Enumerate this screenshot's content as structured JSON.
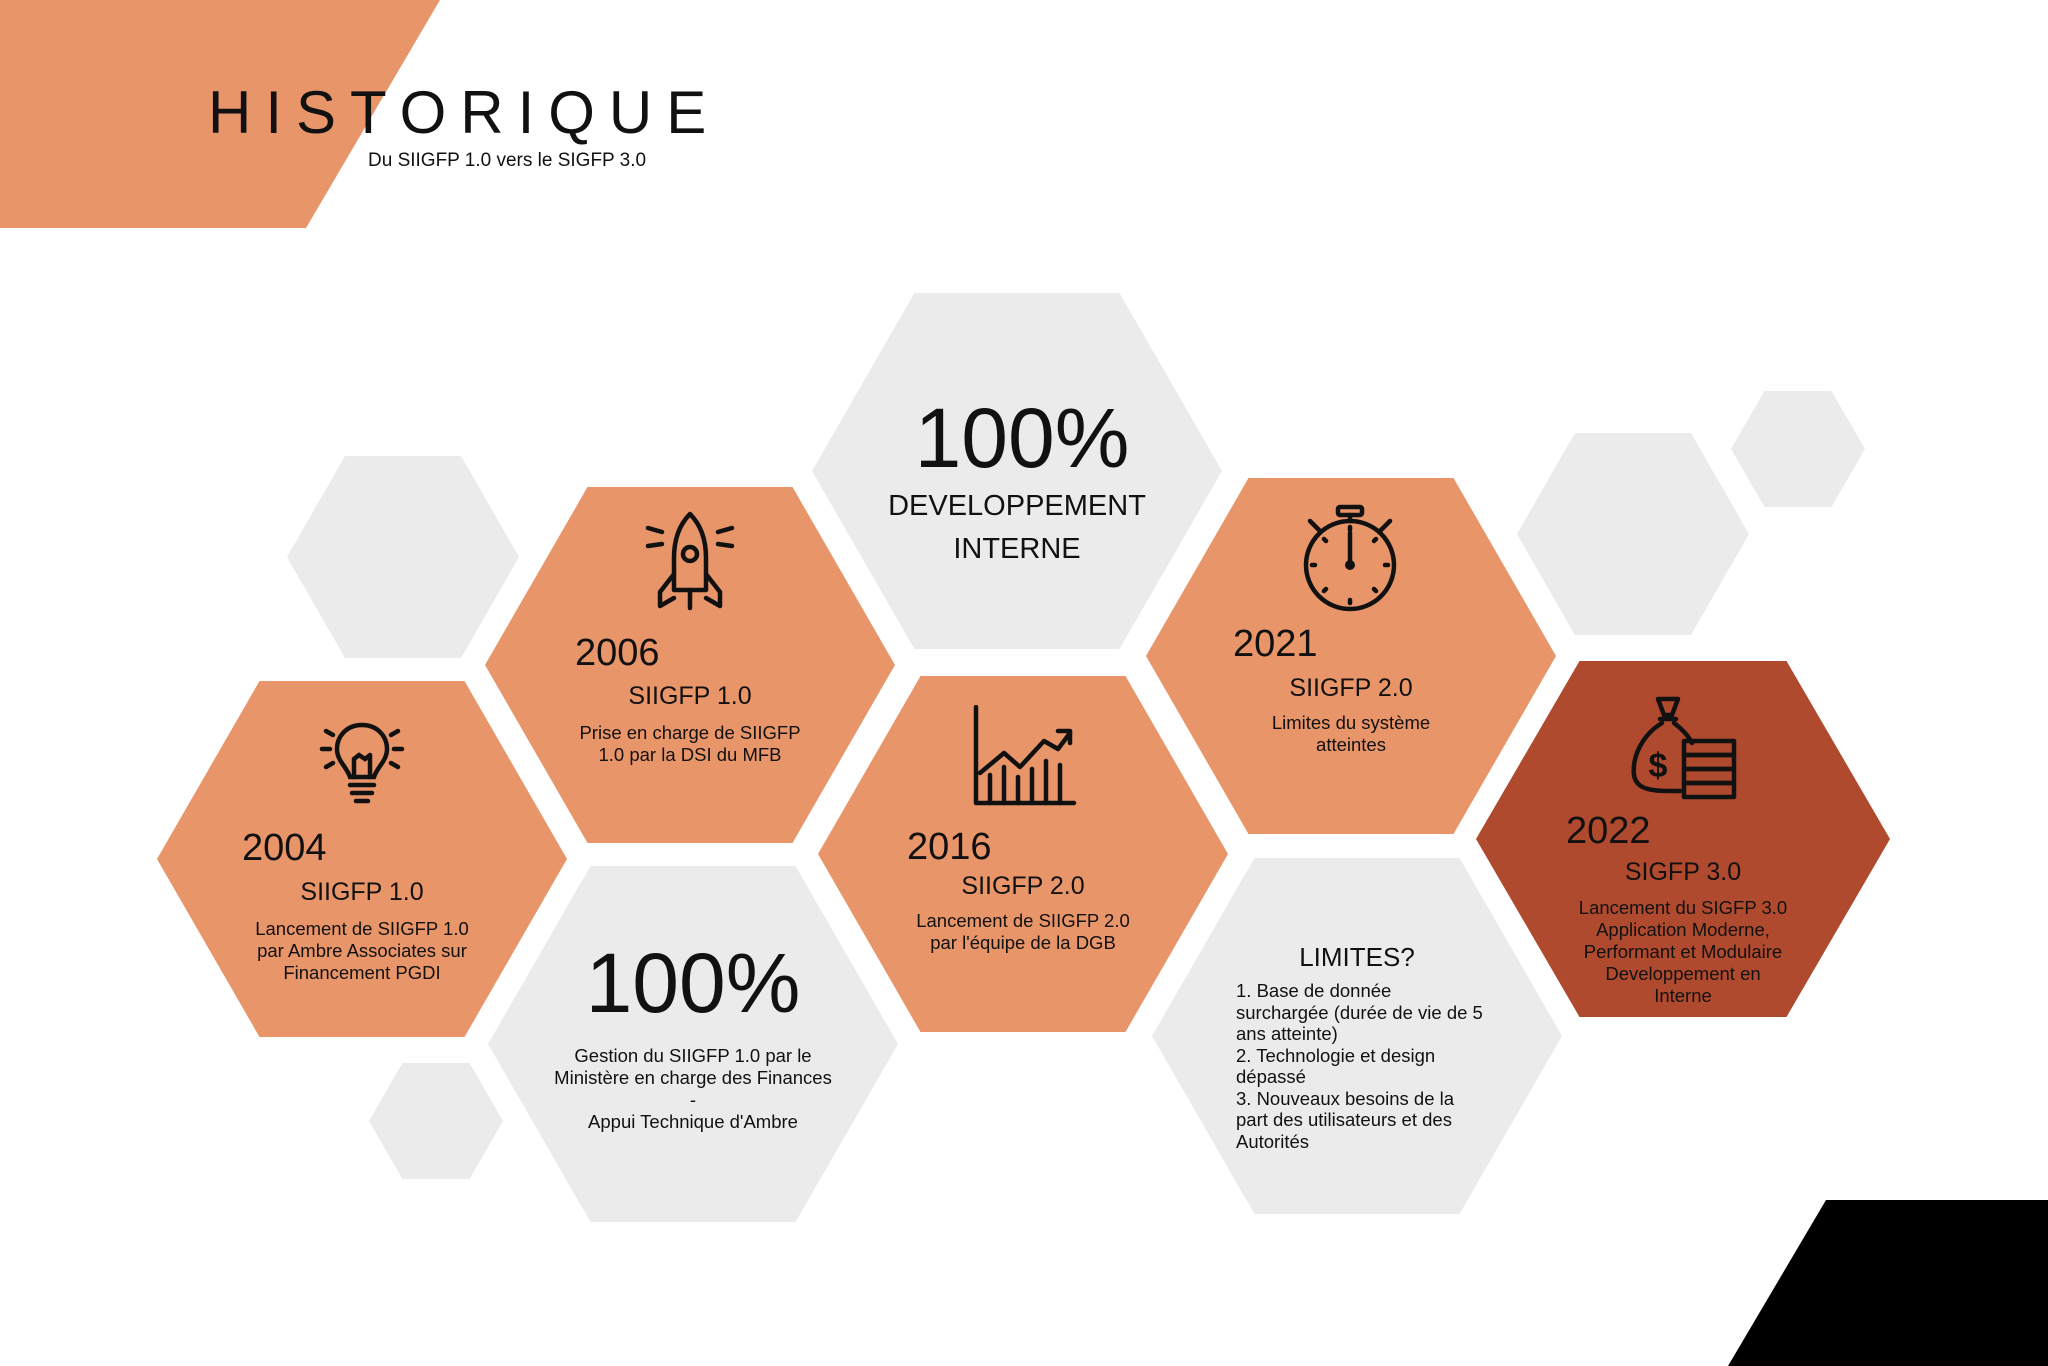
{
  "header": {
    "title": "HISTORIQUE",
    "subtitle": "Du SIIGFP 1.0 vers le SIGFP 3.0"
  },
  "colors": {
    "accent_orange": "#e9956a",
    "accent_rust": "#b04a2e",
    "hex_gray": "#ebebeb",
    "corner_black": "#000000"
  },
  "timeline": [
    {
      "year": "2004",
      "name": "SIIGFP 1.0",
      "description": "Lancement de SIIGFP 1.0\npar Ambre Associates sur\nFinancement PGDI",
      "icon": "lightbulb-icon"
    },
    {
      "year": "2006",
      "name": "SIIGFP 1.0",
      "description": "Prise en charge de SIIGFP\n1.0 par la DSI du MFB",
      "icon": "rocket-icon"
    },
    {
      "year": "2016",
      "name": "SIIGFP 2.0",
      "description": "Lancement de SIIGFP 2.0\npar l'équipe de la DGB",
      "icon": "growth-chart-icon"
    },
    {
      "year": "2021",
      "name": "SIIGFP 2.0",
      "description": "Limites du système\natteintes",
      "icon": "stopwatch-icon"
    },
    {
      "year": "2022",
      "name": "SIGFP 3.0",
      "description": "Lancement du SIGFP 3.0\nApplication Moderne,\nPerformant et Modulaire\nDeveloppement en\nInterne",
      "icon": "money-bag-icon"
    }
  ],
  "stats": {
    "internal": {
      "value": "100%",
      "line1": "DEVELOPPEMENT",
      "line2": "INTERNE"
    },
    "ministry": {
      "value": "100%",
      "description": "Gestion du SIIGFP 1.0 par le\nMinistère en charge des Finances\n-\nAppui Technique d'Ambre"
    }
  },
  "limits": {
    "title": "LIMITES?",
    "items": [
      "1. Base de donnée\nsurchargée (durée de vie de 5\nans atteinte)",
      "2. Technologie et design\ndépassé",
      "3. Nouveaux besoins de la\npart des utilisateurs et des\nAutorités"
    ]
  }
}
